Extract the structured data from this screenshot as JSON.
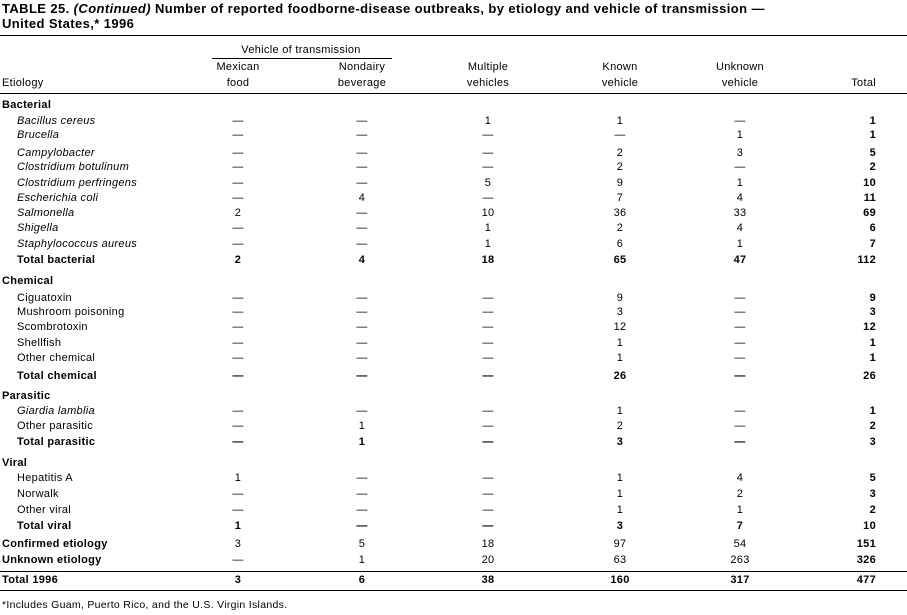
{
  "title": {
    "prefix": "TABLE 25. ",
    "emphasis": "(Continued)",
    "line1": " Number of reported foodborne-disease outbreaks, by etiology and vehicle of transmission —",
    "line2": "United States,* 1996"
  },
  "table": {
    "group_header": "Vehicle of transmission",
    "columns": [
      [
        "Etiology"
      ],
      [
        "Mexican",
        "food"
      ],
      [
        "Nondairy",
        "beverage"
      ],
      [
        "Multiple",
        "vehicles"
      ],
      [
        "Known",
        "vehicle"
      ],
      [
        "Unknown",
        "vehicle"
      ],
      [
        "Total"
      ]
    ],
    "rows": [
      {
        "label": "Bacterial",
        "kind": "section"
      },
      {
        "label": "Bacillus cereus",
        "kind": "item",
        "italic": true,
        "cells": [
          "—",
          "—",
          1,
          1,
          "—",
          1
        ]
      },
      {
        "label": "Brucella",
        "kind": "item",
        "italic": true,
        "cells": [
          "—",
          "—",
          "—",
          "—",
          1,
          1
        ]
      },
      {
        "label": "Campylobacter",
        "kind": "item",
        "italic": true,
        "cells": [
          "—",
          "—",
          "—",
          2,
          3,
          5
        ]
      },
      {
        "label": "Clostridium botulinum",
        "kind": "item",
        "italic": true,
        "cells": [
          "—",
          "—",
          "—",
          2,
          "—",
          2
        ]
      },
      {
        "label": "Clostridium perfringens",
        "kind": "item",
        "italic": true,
        "cells": [
          "—",
          "—",
          5,
          9,
          1,
          10
        ]
      },
      {
        "label": "Escherichia coli",
        "kind": "item",
        "italic": true,
        "cells": [
          "—",
          4,
          "—",
          7,
          4,
          11
        ]
      },
      {
        "label": "Salmonella",
        "kind": "item",
        "italic": true,
        "cells": [
          2,
          "—",
          10,
          36,
          33,
          69
        ]
      },
      {
        "label": "Shigella",
        "kind": "item",
        "italic": true,
        "cells": [
          "—",
          "—",
          1,
          2,
          4,
          6
        ]
      },
      {
        "label": "Staphylococcus aureus",
        "kind": "item",
        "italic": true,
        "cells": [
          "—",
          "—",
          1,
          6,
          1,
          7
        ]
      },
      {
        "label": "Total bacterial",
        "kind": "subtotal",
        "cells": [
          2,
          4,
          18,
          65,
          47,
          112
        ]
      },
      {
        "label": "Chemical",
        "kind": "section"
      },
      {
        "label": "Ciguatoxin",
        "kind": "item",
        "cells": [
          "—",
          "—",
          "—",
          9,
          "—",
          9
        ]
      },
      {
        "label": "Mushroom poisoning",
        "kind": "item",
        "cells": [
          "—",
          "—",
          "—",
          3,
          "—",
          3
        ]
      },
      {
        "label": "Scombrotoxin",
        "kind": "item",
        "cells": [
          "—",
          "—",
          "—",
          12,
          "—",
          12
        ]
      },
      {
        "label": "Shellfish",
        "kind": "item",
        "cells": [
          "—",
          "—",
          "—",
          1,
          "—",
          1
        ]
      },
      {
        "label": "Other chemical",
        "kind": "item",
        "cells": [
          "—",
          "—",
          "—",
          1,
          "—",
          1
        ]
      },
      {
        "label": "Total chemical",
        "kind": "subtotal",
        "cells": [
          "—",
          "—",
          "—",
          26,
          "—",
          26
        ]
      },
      {
        "label": "Parasitic",
        "kind": "section"
      },
      {
        "label": "Giardia lamblia",
        "kind": "item",
        "italic": true,
        "cells": [
          "—",
          "—",
          "—",
          1,
          "—",
          1
        ]
      },
      {
        "label": "Other parasitic",
        "kind": "item",
        "cells": [
          "—",
          1,
          "—",
          2,
          "—",
          2
        ]
      },
      {
        "label": "Total parasitic",
        "kind": "subtotal",
        "cells": [
          "—",
          1,
          "—",
          3,
          "—",
          3
        ]
      },
      {
        "label": "Viral",
        "kind": "section"
      },
      {
        "label": "Hepatitis A",
        "kind": "item",
        "cells": [
          1,
          "—",
          "—",
          1,
          4,
          5
        ]
      },
      {
        "label": "Norwalk",
        "kind": "item",
        "cells": [
          "—",
          "—",
          "—",
          1,
          2,
          3
        ]
      },
      {
        "label": "Other viral",
        "kind": "item",
        "cells": [
          "—",
          "—",
          "—",
          1,
          1,
          2
        ]
      },
      {
        "label": "Total viral",
        "kind": "subtotal",
        "cells": [
          1,
          "—",
          "—",
          3,
          7,
          10
        ]
      },
      {
        "label": "Confirmed etiology",
        "kind": "summary",
        "cells": [
          3,
          5,
          18,
          97,
          54,
          151
        ]
      },
      {
        "label": "Unknown etiology",
        "kind": "summary",
        "cells": [
          "—",
          1,
          20,
          63,
          263,
          326
        ]
      },
      {
        "label": "Total 1996",
        "kind": "grand",
        "cells": [
          3,
          6,
          38,
          160,
          317,
          477
        ]
      }
    ]
  },
  "footnote": "*Includes Guam, Puerto Rico, and the U.S. Virgin Islands."
}
